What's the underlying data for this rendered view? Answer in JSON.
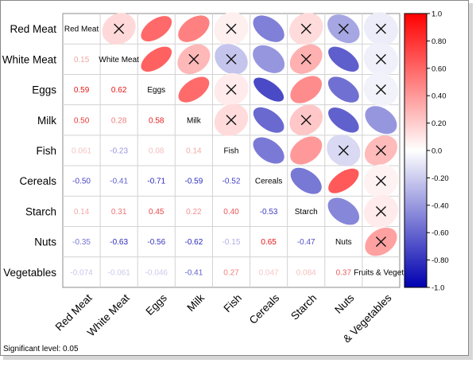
{
  "chart_data": {
    "type": "heatmap",
    "variables": [
      "Red Meat",
      "White Meat",
      "Eggs",
      "Milk",
      "Fish",
      "Cereals",
      "Starch",
      "Nuts",
      "Fruits & Vegetables"
    ],
    "row_labels": [
      "Red Meat",
      "White Meat",
      "Eggs",
      "Milk",
      "Fish",
      "Cereals",
      "Starch",
      "Nuts",
      "Vegetables"
    ],
    "col_labels": [
      "Red Meat",
      "White Meat",
      "Eggs",
      "Milk",
      "Fish",
      "Cereals",
      "Starch",
      "Nuts",
      "& Vegetables"
    ],
    "diagonal_labels": [
      "Red Meat",
      "White Meat",
      "Eggs",
      "Milk",
      "Fish",
      "Cereals",
      "Starch",
      "Nuts",
      "Fruits & Vegeta"
    ],
    "lower": [
      {
        "row": 1,
        "col": 0,
        "value": 0.15,
        "label": "0.15"
      },
      {
        "row": 2,
        "col": 0,
        "value": 0.59,
        "label": "0.59"
      },
      {
        "row": 2,
        "col": 1,
        "value": 0.62,
        "label": "0.62"
      },
      {
        "row": 3,
        "col": 0,
        "value": 0.5,
        "label": "0.50"
      },
      {
        "row": 3,
        "col": 1,
        "value": 0.28,
        "label": "0.28"
      },
      {
        "row": 3,
        "col": 2,
        "value": 0.58,
        "label": "0.58"
      },
      {
        "row": 4,
        "col": 0,
        "value": 0.06,
        "label": "0.061"
      },
      {
        "row": 4,
        "col": 1,
        "value": -0.23,
        "label": "-0.23"
      },
      {
        "row": 4,
        "col": 2,
        "value": 0.08,
        "label": "0.08"
      },
      {
        "row": 4,
        "col": 3,
        "value": 0.14,
        "label": "0.14"
      },
      {
        "row": 5,
        "col": 0,
        "value": -0.5,
        "label": "-0.50"
      },
      {
        "row": 5,
        "col": 1,
        "value": -0.41,
        "label": "-0.41"
      },
      {
        "row": 5,
        "col": 2,
        "value": -0.71,
        "label": "-0.71"
      },
      {
        "row": 5,
        "col": 3,
        "value": -0.59,
        "label": "-0.59"
      },
      {
        "row": 5,
        "col": 4,
        "value": -0.52,
        "label": "-0.52"
      },
      {
        "row": 6,
        "col": 0,
        "value": 0.14,
        "label": "0.14"
      },
      {
        "row": 6,
        "col": 1,
        "value": 0.31,
        "label": "0.31"
      },
      {
        "row": 6,
        "col": 2,
        "value": 0.45,
        "label": "0.45"
      },
      {
        "row": 6,
        "col": 3,
        "value": 0.22,
        "label": "0.22"
      },
      {
        "row": 6,
        "col": 4,
        "value": 0.4,
        "label": "0.40"
      },
      {
        "row": 6,
        "col": 5,
        "value": -0.53,
        "label": "-0.53"
      },
      {
        "row": 7,
        "col": 0,
        "value": -0.35,
        "label": "-0.35"
      },
      {
        "row": 7,
        "col": 1,
        "value": -0.63,
        "label": "-0.63"
      },
      {
        "row": 7,
        "col": 2,
        "value": -0.56,
        "label": "-0.56"
      },
      {
        "row": 7,
        "col": 3,
        "value": -0.62,
        "label": "-0.62"
      },
      {
        "row": 7,
        "col": 4,
        "value": -0.15,
        "label": "-0.15"
      },
      {
        "row": 7,
        "col": 5,
        "value": 0.65,
        "label": "0.65"
      },
      {
        "row": 7,
        "col": 6,
        "value": -0.47,
        "label": "-0.47"
      },
      {
        "row": 8,
        "col": 0,
        "value": -0.07,
        "label": "-0.074"
      },
      {
        "row": 8,
        "col": 1,
        "value": -0.06,
        "label": "-0.061"
      },
      {
        "row": 8,
        "col": 2,
        "value": -0.05,
        "label": "-0.046"
      },
      {
        "row": 8,
        "col": 3,
        "value": -0.41,
        "label": "-0.41"
      },
      {
        "row": 8,
        "col": 4,
        "value": 0.27,
        "label": "0.27"
      },
      {
        "row": 8,
        "col": 5,
        "value": 0.05,
        "label": "0.047"
      },
      {
        "row": 8,
        "col": 6,
        "value": 0.08,
        "label": "0.084"
      },
      {
        "row": 8,
        "col": 7,
        "value": 0.37,
        "label": "0.37"
      }
    ],
    "upper": [
      {
        "row": 0,
        "col": 1,
        "value": 0.15,
        "crossed": true
      },
      {
        "row": 0,
        "col": 2,
        "value": 0.59,
        "crossed": false
      },
      {
        "row": 0,
        "col": 3,
        "value": 0.5,
        "crossed": false
      },
      {
        "row": 0,
        "col": 4,
        "value": 0.06,
        "crossed": true
      },
      {
        "row": 0,
        "col": 5,
        "value": -0.5,
        "crossed": false
      },
      {
        "row": 0,
        "col": 6,
        "value": 0.14,
        "crossed": true
      },
      {
        "row": 0,
        "col": 7,
        "value": -0.35,
        "crossed": true
      },
      {
        "row": 0,
        "col": 8,
        "value": -0.07,
        "crossed": true
      },
      {
        "row": 1,
        "col": 2,
        "value": 0.62,
        "crossed": false
      },
      {
        "row": 1,
        "col": 3,
        "value": 0.28,
        "crossed": true
      },
      {
        "row": 1,
        "col": 4,
        "value": -0.23,
        "crossed": true
      },
      {
        "row": 1,
        "col": 5,
        "value": -0.41,
        "crossed": false
      },
      {
        "row": 1,
        "col": 6,
        "value": 0.31,
        "crossed": true
      },
      {
        "row": 1,
        "col": 7,
        "value": -0.63,
        "crossed": false
      },
      {
        "row": 1,
        "col": 8,
        "value": -0.06,
        "crossed": true
      },
      {
        "row": 2,
        "col": 3,
        "value": 0.58,
        "crossed": false
      },
      {
        "row": 2,
        "col": 4,
        "value": 0.08,
        "crossed": true
      },
      {
        "row": 2,
        "col": 5,
        "value": -0.71,
        "crossed": false
      },
      {
        "row": 2,
        "col": 6,
        "value": 0.45,
        "crossed": false
      },
      {
        "row": 2,
        "col": 7,
        "value": -0.56,
        "crossed": false
      },
      {
        "row": 2,
        "col": 8,
        "value": -0.05,
        "crossed": true
      },
      {
        "row": 3,
        "col": 4,
        "value": 0.14,
        "crossed": true
      },
      {
        "row": 3,
        "col": 5,
        "value": -0.59,
        "crossed": false
      },
      {
        "row": 3,
        "col": 6,
        "value": 0.22,
        "crossed": true
      },
      {
        "row": 3,
        "col": 7,
        "value": -0.62,
        "crossed": false
      },
      {
        "row": 3,
        "col": 8,
        "value": -0.41,
        "crossed": false
      },
      {
        "row": 4,
        "col": 5,
        "value": -0.52,
        "crossed": false
      },
      {
        "row": 4,
        "col": 6,
        "value": 0.4,
        "crossed": false
      },
      {
        "row": 4,
        "col": 7,
        "value": -0.15,
        "crossed": true
      },
      {
        "row": 4,
        "col": 8,
        "value": 0.27,
        "crossed": true
      },
      {
        "row": 5,
        "col": 6,
        "value": -0.53,
        "crossed": false
      },
      {
        "row": 5,
        "col": 7,
        "value": 0.65,
        "crossed": false
      },
      {
        "row": 5,
        "col": 8,
        "value": 0.05,
        "crossed": true
      },
      {
        "row": 6,
        "col": 7,
        "value": -0.47,
        "crossed": false
      },
      {
        "row": 6,
        "col": 8,
        "value": 0.08,
        "crossed": true
      },
      {
        "row": 7,
        "col": 8,
        "value": 0.37,
        "crossed": true
      }
    ],
    "colorbar": {
      "range": [
        -1,
        1
      ],
      "ticks": [
        1,
        0.8,
        0.6,
        0.4,
        0.2,
        0,
        -0.2,
        -0.4,
        -0.6,
        -0.8,
        -1
      ],
      "tick_labels": [
        "1.0",
        "0.80",
        "0.60",
        "0.40",
        "0.20",
        "0.0",
        "-0.20",
        "-0.40",
        "-0.60",
        "-0.80",
        "-1.0"
      ],
      "colors": {
        "negative": "#0000b0",
        "zero": "#ffffff",
        "positive": "#ff0000"
      }
    },
    "footnote": "Significant level: 0.05"
  }
}
